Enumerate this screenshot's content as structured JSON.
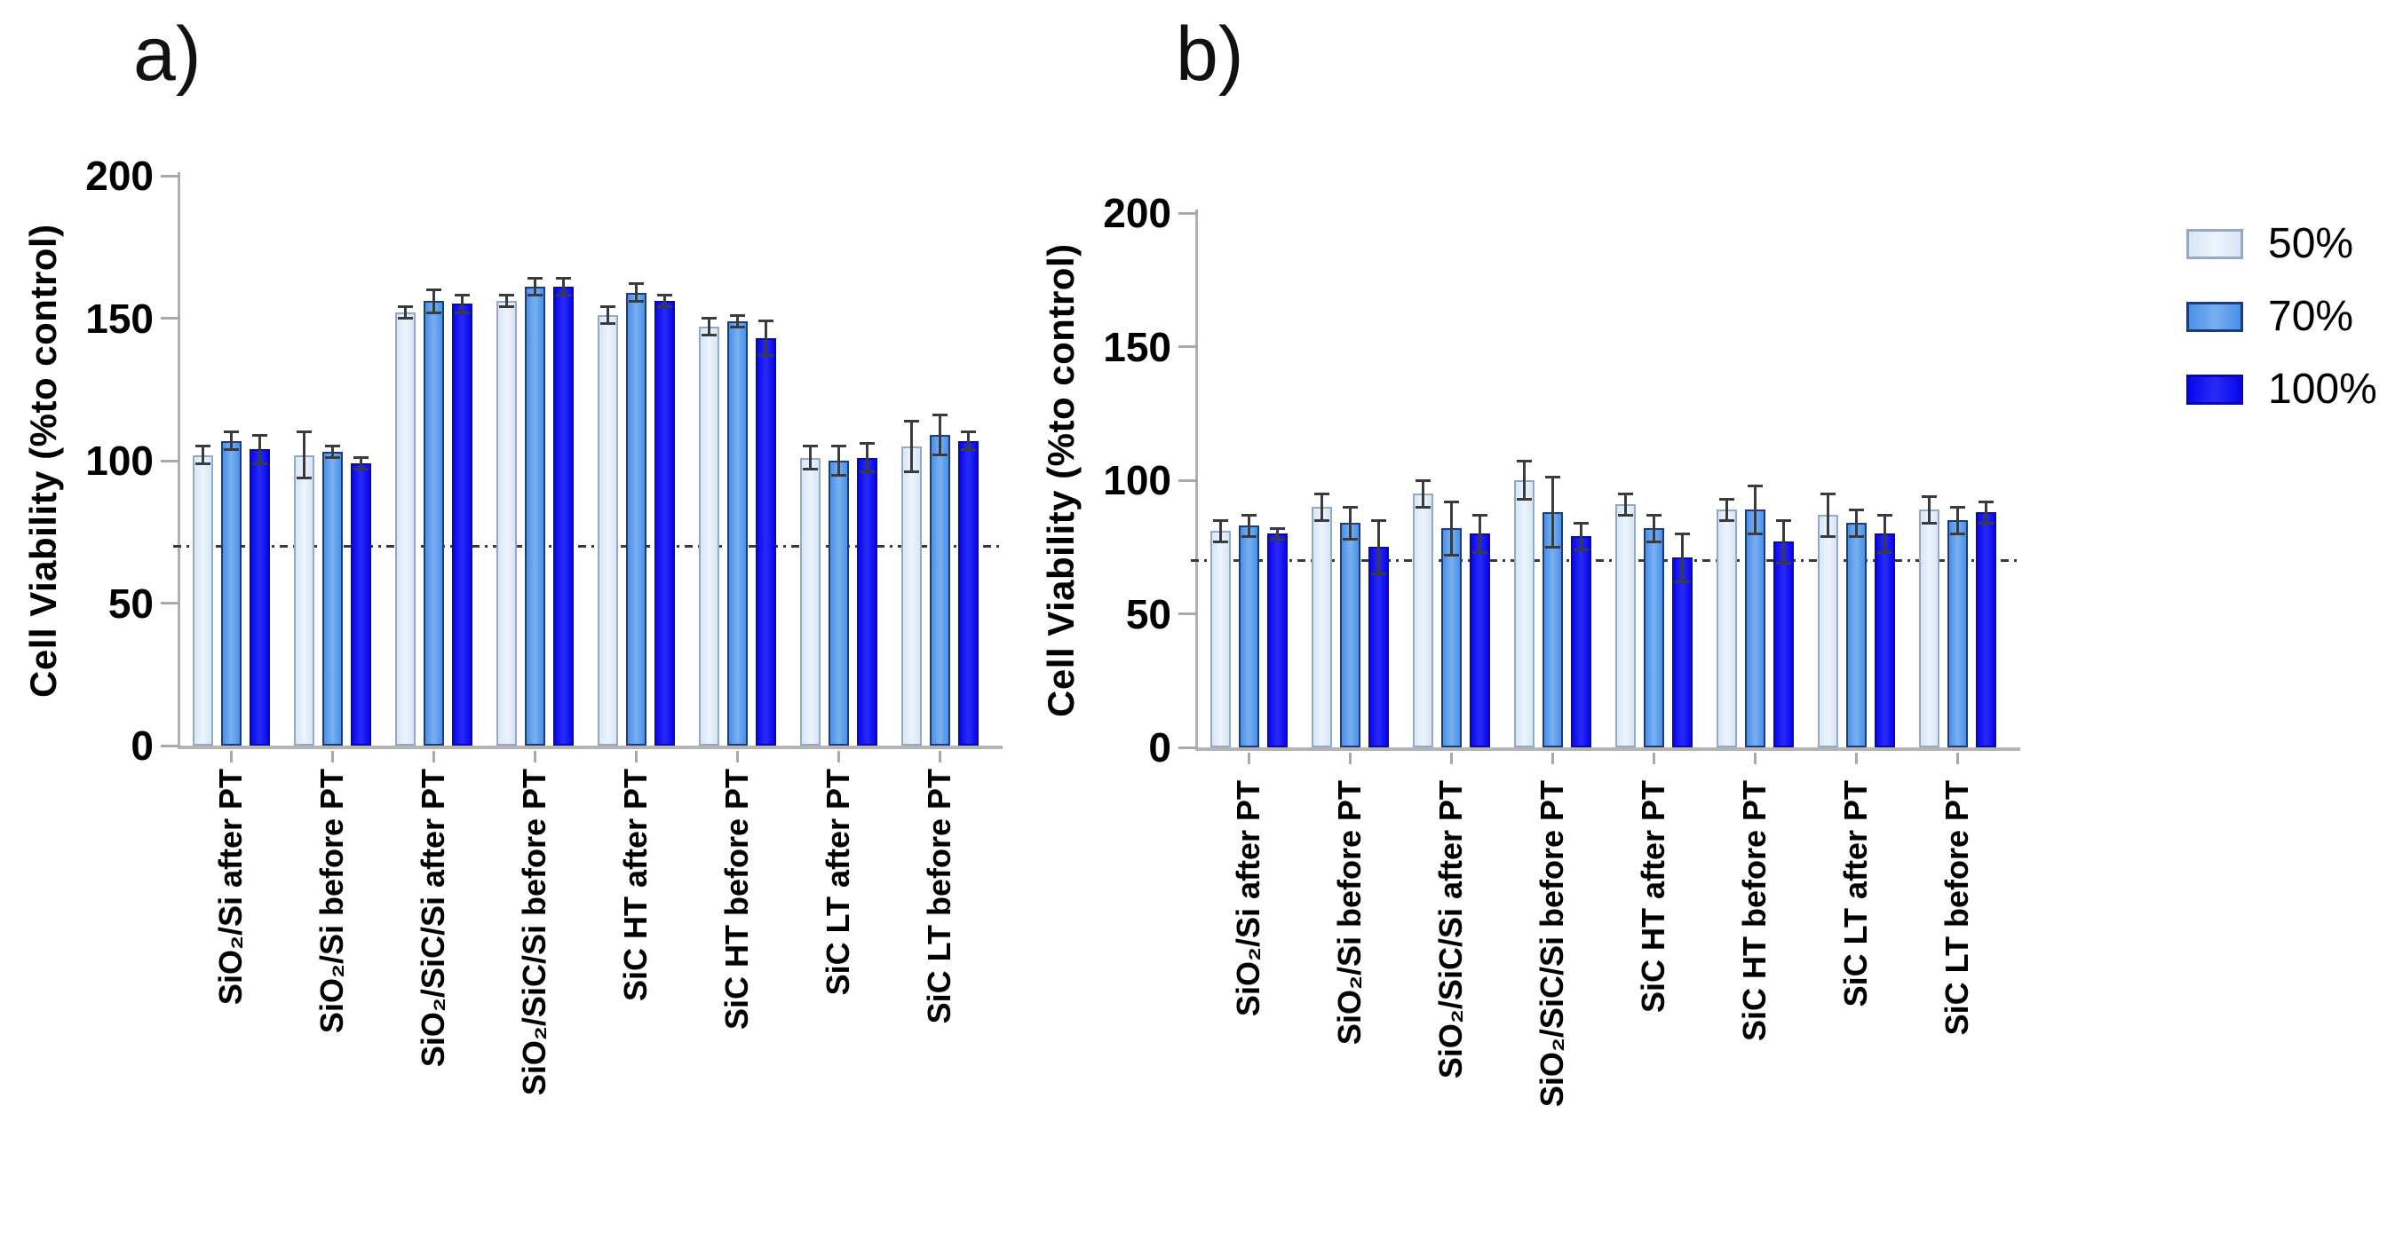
{
  "figure": {
    "panel_a_label": "a)",
    "panel_b_label": "b)"
  },
  "legend": {
    "position": "right-top",
    "items": [
      {
        "label": "50%",
        "color": "#d7e6f7",
        "highlight": "#edf4fc",
        "border": "#93a9c6"
      },
      {
        "label": "70%",
        "color": "#4a90e8",
        "highlight": "#79b0f1",
        "border": "#1c3c7e"
      },
      {
        "label": "100%",
        "color": "#0808f0",
        "highlight": "#2a2af6",
        "border": "#0a0aa8"
      }
    ]
  },
  "chart_data": [
    {
      "id": "a",
      "type": "bar",
      "title": "a)",
      "xlabel": "",
      "ylabel": "Cell Viability (%to control)",
      "ylim": [
        0,
        200
      ],
      "yticks": [
        0,
        50,
        100,
        150,
        200
      ],
      "grid": false,
      "legend_position": "none",
      "reference_line": 70,
      "categories": [
        "SiO₂/Si after PT",
        "SiO₂/Si before PT",
        "SiO₂/SiC/Si after PT",
        "SiO₂/SiC/Si before PT",
        "SiC HT after PT",
        "SiC HT before PT",
        "SiC LT after PT",
        "SiC LT before PT"
      ],
      "series": [
        {
          "name": "50%",
          "values": [
            102,
            102,
            152,
            156,
            151,
            147,
            101,
            105
          ],
          "errors": [
            3,
            8,
            2,
            2,
            3,
            3,
            4,
            9
          ]
        },
        {
          "name": "70%",
          "values": [
            107,
            103,
            156,
            161,
            159,
            149,
            100,
            109
          ],
          "errors": [
            3,
            2,
            4,
            3,
            3,
            2,
            5,
            7
          ]
        },
        {
          "name": "100%",
          "values": [
            104,
            99,
            155,
            161,
            156,
            143,
            101,
            107
          ],
          "errors": [
            5,
            2,
            3,
            3,
            2,
            6,
            5,
            3
          ]
        }
      ]
    },
    {
      "id": "b",
      "type": "bar",
      "title": "b)",
      "xlabel": "",
      "ylabel": "Cell Viability (%to control)",
      "ylim": [
        0,
        200
      ],
      "yticks": [
        0,
        50,
        100,
        150,
        200
      ],
      "grid": false,
      "legend_position": "none",
      "reference_line": 70,
      "categories": [
        "SiO₂/Si after PT",
        "SiO₂/Si before PT",
        "SiO₂/SiC/Si after PT",
        "SiO₂/SiC/Si before PT",
        "SiC HT after PT",
        "SiC HT before PT",
        "SiC LT after PT",
        "SiC LT before PT"
      ],
      "series": [
        {
          "name": "50%",
          "values": [
            81,
            90,
            95,
            100,
            91,
            89,
            87,
            89
          ],
          "errors": [
            4,
            5,
            5,
            7,
            4,
            4,
            8,
            5
          ]
        },
        {
          "name": "70%",
          "values": [
            83,
            84,
            82,
            88,
            82,
            89,
            84,
            85
          ],
          "errors": [
            4,
            6,
            10,
            13,
            5,
            9,
            5,
            5
          ]
        },
        {
          "name": "100%",
          "values": [
            80,
            75,
            80,
            79,
            71,
            77,
            80,
            88
          ],
          "errors": [
            2,
            10,
            7,
            5,
            9,
            8,
            7,
            4
          ]
        }
      ]
    }
  ]
}
